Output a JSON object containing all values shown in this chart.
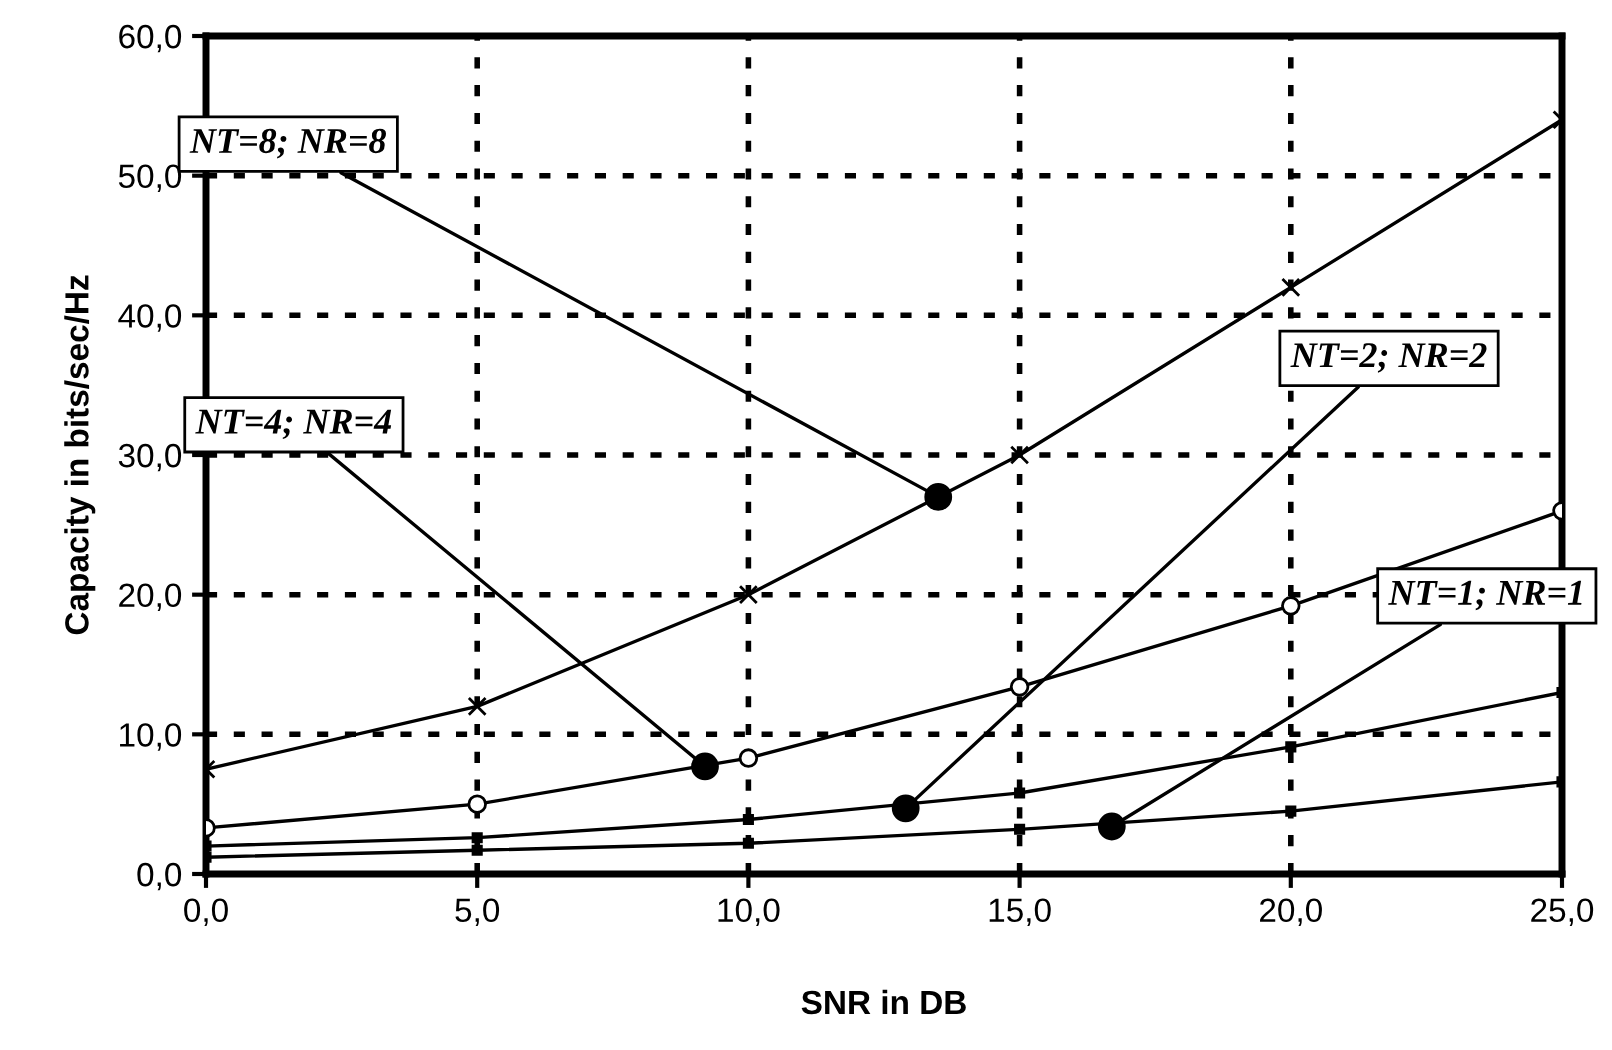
{
  "chart_data": {
    "type": "line",
    "xlabel": "SNR in DB",
    "ylabel": "Capacity in bits/sec/Hz",
    "x": [
      0,
      5,
      10,
      15,
      20,
      25
    ],
    "series": [
      {
        "color": "#000000",
        "marker": "cross",
        "values": [
          7.5,
          12,
          20,
          30,
          42,
          54
        ]
      },
      {
        "color": "#000000",
        "marker": "circle",
        "values": [
          3.3,
          5.0,
          8.3,
          13.4,
          19.2,
          26
        ]
      },
      {
        "color": "#000000",
        "marker": "square",
        "values": [
          2.0,
          2.6,
          3.9,
          5.8,
          9.1,
          13.0
        ]
      },
      {
        "color": "#000000",
        "marker": "square",
        "values": [
          1.2,
          1.7,
          2.2,
          3.2,
          4.5,
          6.6
        ]
      }
    ],
    "annotations": [
      {
        "text": "NT=8; NR=8",
        "x": 13.5,
        "y": 27
      },
      {
        "text": "NT=4; NR=4",
        "x": 9.2,
        "y": 7.7
      },
      {
        "text": "NT=2; NR=2",
        "x": 12.9,
        "y": 4.7
      },
      {
        "text": "NT=1; NR=1",
        "x": 16.7,
        "y": 3.4
      }
    ],
    "xlim": [
      0,
      25
    ],
    "ylim": [
      0,
      60
    ],
    "xticks": [
      {
        "value": 0,
        "label": "0,0"
      },
      {
        "value": 5,
        "label": "5,0"
      },
      {
        "value": 10,
        "label": "10,0"
      },
      {
        "value": 15,
        "label": "15,0"
      },
      {
        "value": 20,
        "label": "20,0"
      },
      {
        "value": 25,
        "label": "25,0"
      }
    ],
    "yticks": [
      {
        "value": 0,
        "label": "0,0"
      },
      {
        "value": 10,
        "label": "10,0"
      },
      {
        "value": 20,
        "label": "20,0"
      },
      {
        "value": 30,
        "label": "30,0"
      },
      {
        "value": 40,
        "label": "40,0"
      },
      {
        "value": 50,
        "label": "50,0"
      },
      {
        "value": 60,
        "label": "60,0"
      }
    ],
    "grid": true,
    "line_style": "solid"
  }
}
